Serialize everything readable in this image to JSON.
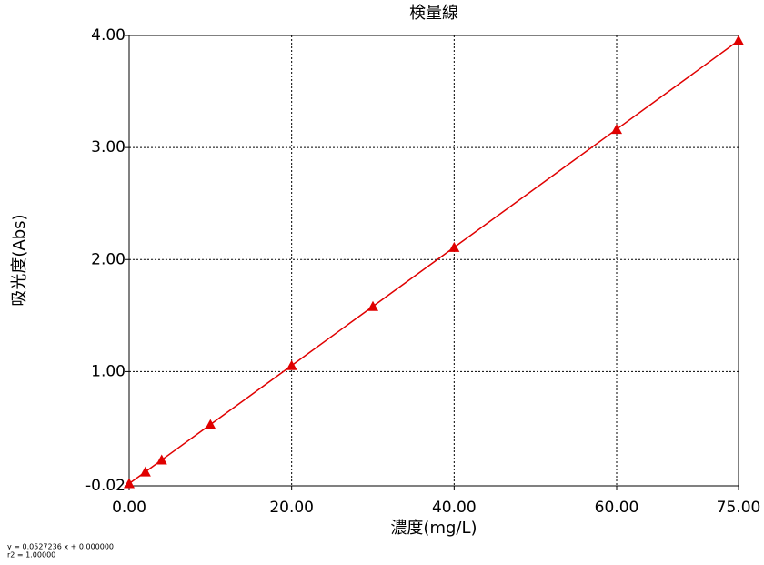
{
  "chart_data": {
    "type": "line",
    "title": "検量線",
    "x_label": "濃度(mg/L)",
    "y_label": "吸光度(Abs)",
    "x": [
      0,
      2,
      4,
      10,
      20,
      30,
      40,
      60,
      75
    ],
    "series": [
      {
        "color": "#e00000",
        "values": [
          0,
          0.105,
          0.211,
          0.527,
          1.054,
          1.582,
          2.109,
          3.163,
          3.954
        ]
      }
    ],
    "xlim": [
      0,
      75
    ],
    "ylim": [
      -0.02,
      4.0
    ],
    "xticks": [
      {
        "value": 0,
        "label": "0.00"
      },
      {
        "value": 20,
        "label": "20.00"
      },
      {
        "value": 40,
        "label": "40.00"
      },
      {
        "value": 60,
        "label": "60.00"
      },
      {
        "value": 75,
        "label": "75.00"
      }
    ],
    "yticks": [
      -0.02,
      {
        "value": 1,
        "label": "1.00"
      },
      {
        "value": 2,
        "label": "2.00"
      },
      {
        "value": 3,
        "label": "3.00"
      },
      {
        "value": 4,
        "label": "4.00"
      }
    ],
    "grid": true,
    "annotations": [
      "y = 0.0527236 x + 0.000000",
      "r2 = 1.00000"
    ]
  }
}
